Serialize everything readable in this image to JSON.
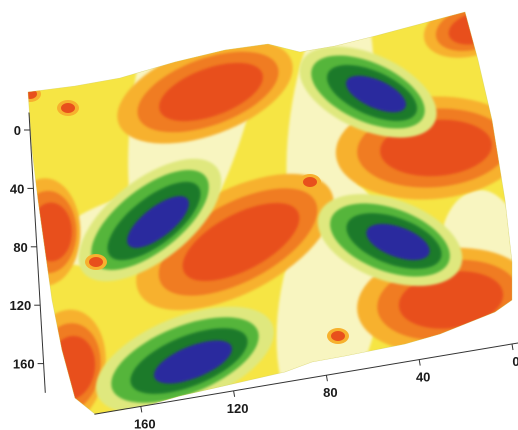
{
  "chart_data": {
    "type": "heatmap",
    "subtype": "3d-surface-contour",
    "title": "",
    "xlabel": "",
    "ylabel": "",
    "y_axis": {
      "ticks": [
        0,
        40,
        80,
        120,
        160
      ],
      "labels": [
        "0",
        "40",
        "80",
        "120",
        "160"
      ],
      "range": [
        -12,
        180
      ]
    },
    "x_axis": {
      "ticks": [
        160,
        120,
        80,
        40,
        0
      ],
      "labels": [
        "160",
        "120",
        "80",
        "40",
        "0"
      ],
      "range": [
        180,
        -5
      ],
      "direction": "decreasing-left-to-right"
    },
    "color_levels": [
      {
        "level": "low-3",
        "color": "#2b2b9e"
      },
      {
        "level": "low-2",
        "color": "#1f7a2a"
      },
      {
        "level": "low-1",
        "color": "#55b53b"
      },
      {
        "level": "mid-low",
        "color": "#dfe87e"
      },
      {
        "level": "mid",
        "color": "#f8f5c0"
      },
      {
        "level": "mid-high",
        "color": "#f6e544"
      },
      {
        "level": "high-1",
        "color": "#f7b12e"
      },
      {
        "level": "high-2",
        "color": "#f07c22"
      },
      {
        "level": "high-3",
        "color": "#e8501c"
      }
    ],
    "grid": false,
    "legend": "none"
  }
}
